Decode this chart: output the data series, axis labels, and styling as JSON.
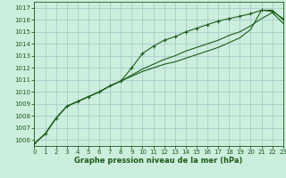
{
  "title": "Graphe pression niveau de la mer (hPa)",
  "bg_color": "#cceedd",
  "grid_color": "#aacccc",
  "line_color": "#1a5c1a",
  "xlim": [
    0,
    23
  ],
  "ylim": [
    1005.5,
    1017.5
  ],
  "xticks": [
    0,
    1,
    2,
    3,
    4,
    5,
    6,
    7,
    8,
    9,
    10,
    11,
    12,
    13,
    14,
    15,
    16,
    17,
    18,
    19,
    20,
    21,
    22,
    23
  ],
  "yticks": [
    1006,
    1007,
    1008,
    1009,
    1010,
    1011,
    1012,
    1013,
    1014,
    1015,
    1016,
    1017
  ],
  "series_marker": [
    1005.7,
    1006.5,
    1007.8,
    1008.8,
    1009.2,
    1009.6,
    1010.0,
    1010.5,
    1010.9,
    1012.0,
    1013.2,
    1013.8,
    1014.3,
    1014.6,
    1015.0,
    1015.3,
    1015.6,
    1015.9,
    1016.1,
    1016.3,
    1016.5,
    1016.8,
    1016.7,
    1016.1
  ],
  "series_smooth1": [
    1005.7,
    1006.5,
    1007.8,
    1008.8,
    1009.2,
    1009.6,
    1010.0,
    1010.5,
    1010.9,
    1011.4,
    1011.9,
    1012.3,
    1012.7,
    1013.0,
    1013.4,
    1013.7,
    1014.0,
    1014.3,
    1014.7,
    1015.0,
    1015.5,
    1016.1,
    1016.6,
    1015.7
  ],
  "series_smooth2": [
    1005.7,
    1006.5,
    1007.8,
    1008.8,
    1009.2,
    1009.6,
    1010.0,
    1010.5,
    1010.9,
    1011.3,
    1011.7,
    1012.0,
    1012.3,
    1012.5,
    1012.8,
    1013.1,
    1013.4,
    1013.7,
    1014.1,
    1014.5,
    1015.2,
    1016.8,
    1016.8,
    1016.0
  ]
}
